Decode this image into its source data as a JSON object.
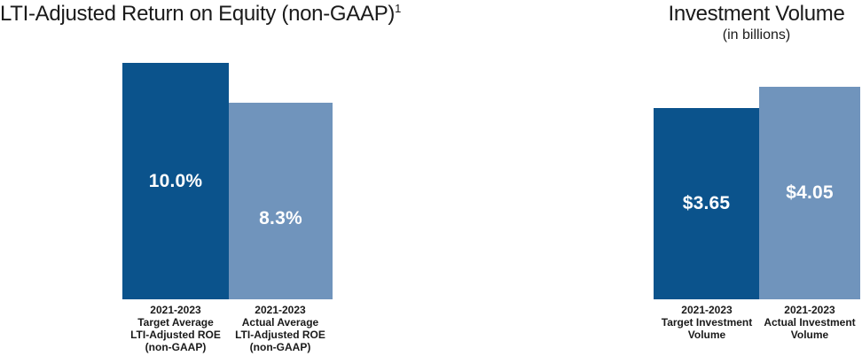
{
  "figure": {
    "left_chart": {
      "title": "LTI-Adjusted Return on Equity (non-GAAP)",
      "title_superscript": "1",
      "bars": [
        {
          "name": "target",
          "value_label": "10.0%",
          "axis_label": "2021-2023\nTarget Average\nLTI-Adjusted ROE\n(non-GAAP)"
        },
        {
          "name": "actual",
          "value_label": "8.3%",
          "axis_label": "2021-2023\nActual Average\nLTI-Adjusted ROE\n(non-GAAP)"
        }
      ]
    },
    "right_chart": {
      "title": "Investment Volume",
      "subtitle": "(in billions)",
      "bars": [
        {
          "name": "target",
          "value_label": "$3.65",
          "axis_label": "2021-2023\nTarget Investment\nVolume"
        },
        {
          "name": "actual",
          "value_label": "$4.05",
          "axis_label": "2021-2023\nActual Investment\nVolume"
        }
      ]
    },
    "colors": {
      "target_bar": "#0b538c",
      "actual_bar": "#7094bc",
      "value_text": "#ffffff",
      "title_text": "#1a1a1a"
    }
  },
  "chart_data": [
    {
      "type": "bar",
      "title": "LTI-Adjusted Return on Equity (non-GAAP)¹",
      "categories": [
        "2021-2023 Target Average LTI-Adjusted ROE (non-GAAP)",
        "2021-2023 Actual Average LTI-Adjusted ROE (non-GAAP)"
      ],
      "values": [
        10.0,
        8.3
      ],
      "data_labels": [
        "10.0%",
        "8.3%"
      ],
      "unit": "percent",
      "ylim": [
        0,
        10
      ],
      "bar_colors": [
        "#0b538c",
        "#7094bc"
      ],
      "grid": false,
      "legend": false,
      "axes_hidden": true
    },
    {
      "type": "bar",
      "title": "Investment Volume",
      "subtitle": "(in billions)",
      "categories": [
        "2021-2023 Target Investment Volume",
        "2021-2023 Actual Investment Volume"
      ],
      "values": [
        3.65,
        4.05
      ],
      "data_labels": [
        "$3.65",
        "$4.05"
      ],
      "unit": "USD billions",
      "ylim": [
        0,
        4.05
      ],
      "bar_colors": [
        "#0b538c",
        "#7094bc"
      ],
      "grid": false,
      "legend": false,
      "axes_hidden": true
    }
  ]
}
